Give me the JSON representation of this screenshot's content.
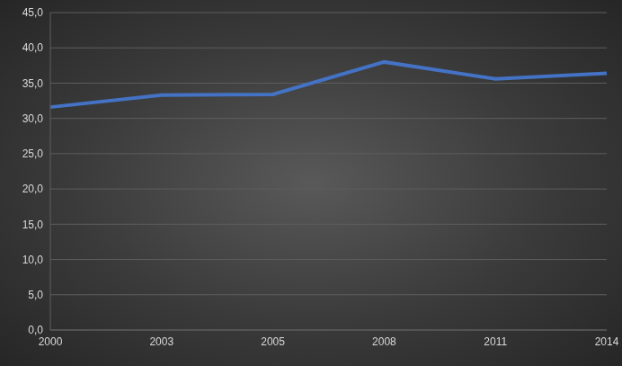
{
  "chart_data": {
    "type": "line",
    "categories": [
      "2000",
      "2003",
      "2005",
      "2008",
      "2011",
      "2014"
    ],
    "values": [
      31.6,
      33.3,
      33.4,
      38.0,
      35.6,
      36.4
    ],
    "color": "#4472c4",
    "ylim": [
      0,
      45
    ],
    "yticks": [
      {
        "value": 0,
        "label": "0,0"
      },
      {
        "value": 5,
        "label": "5,0"
      },
      {
        "value": 10,
        "label": "10,0"
      },
      {
        "value": 15,
        "label": "15,0"
      },
      {
        "value": 20,
        "label": "20,0"
      },
      {
        "value": 25,
        "label": "25,0"
      },
      {
        "value": 30,
        "label": "30,0"
      },
      {
        "value": 35,
        "label": "35,0"
      },
      {
        "value": 40,
        "label": "40,0"
      },
      {
        "value": 45,
        "label": "45,0"
      }
    ],
    "grid": true
  }
}
